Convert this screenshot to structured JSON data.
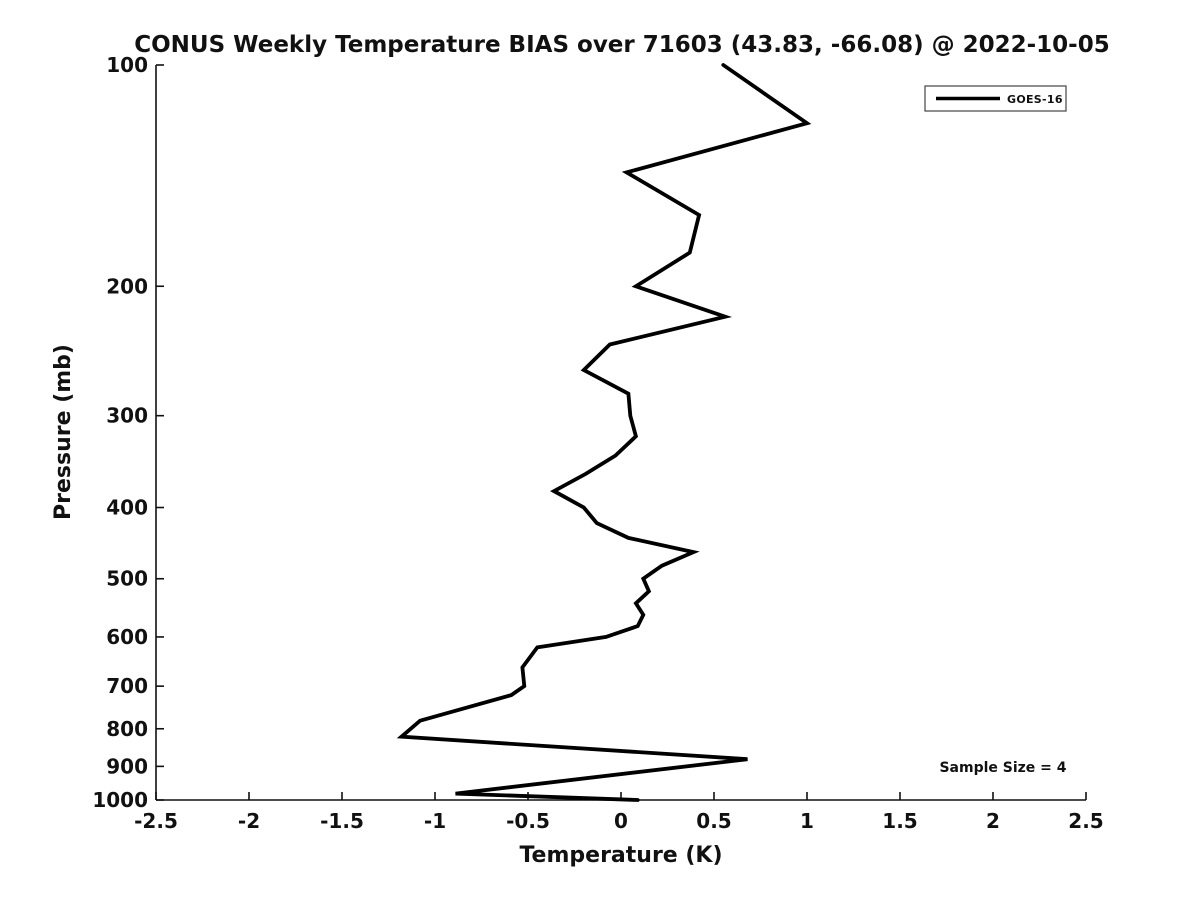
{
  "figure": {
    "background_color": "#ffffff",
    "axis_color": "#111111",
    "tick_label_color": "#111111"
  },
  "chart_data": {
    "type": "line",
    "title": "CONUS Weekly Temperature BIAS over 71603 (43.83, -66.08) @ 2022-10-05",
    "xlabel": "Temperature (K)",
    "ylabel": "Pressure (mb)",
    "xlim": [
      -2.5,
      2.5
    ],
    "ylim": [
      100,
      1000
    ],
    "yscale": "log",
    "y_axis_inverted": true,
    "grid": false,
    "x_ticks": [
      -2.5,
      -2,
      -1.5,
      -1,
      -0.5,
      0,
      0.5,
      1,
      1.5,
      2,
      2.5
    ],
    "x_tick_labels": [
      "-2.5",
      "-2",
      "-1.5",
      "-1",
      "-0.5",
      "0",
      "0.5",
      "1",
      "1.5",
      "2",
      "2.5"
    ],
    "y_ticks": [
      100,
      200,
      300,
      400,
      500,
      600,
      700,
      800,
      900,
      1000
    ],
    "y_tick_labels": [
      "100",
      "200",
      "300",
      "400",
      "500",
      "600",
      "700",
      "800",
      "900",
      "1000"
    ],
    "legend": {
      "position": "upper right",
      "entries": [
        {
          "label": "GOES-16",
          "color": "#000000",
          "line_width": 3.5
        }
      ]
    },
    "annotation": {
      "text": "Sample Size = 4"
    },
    "series": [
      {
        "name": "GOES-16",
        "color": "#000000",
        "line_width": 3.8,
        "points_pressure_mb_vs_bias_k": [
          [
            100,
            0.55
          ],
          [
            120,
            1.0
          ],
          [
            140,
            0.03
          ],
          [
            160,
            0.42
          ],
          [
            180,
            0.37
          ],
          [
            200,
            0.08
          ],
          [
            220,
            0.56
          ],
          [
            240,
            -0.06
          ],
          [
            260,
            -0.2
          ],
          [
            280,
            0.04
          ],
          [
            300,
            0.05
          ],
          [
            320,
            0.08
          ],
          [
            340,
            -0.03
          ],
          [
            360,
            -0.19
          ],
          [
            380,
            -0.36
          ],
          [
            400,
            -0.2
          ],
          [
            420,
            -0.13
          ],
          [
            440,
            0.04
          ],
          [
            460,
            0.39
          ],
          [
            480,
            0.22
          ],
          [
            500,
            0.12
          ],
          [
            520,
            0.15
          ],
          [
            540,
            0.08
          ],
          [
            560,
            0.12
          ],
          [
            580,
            0.09
          ],
          [
            600,
            -0.08
          ],
          [
            620,
            -0.45
          ],
          [
            660,
            -0.53
          ],
          [
            700,
            -0.52
          ],
          [
            720,
            -0.59
          ],
          [
            780,
            -1.08
          ],
          [
            820,
            -1.18
          ],
          [
            880,
            0.68
          ],
          [
            980,
            -0.89
          ],
          [
            1000,
            0.09
          ]
        ]
      }
    ]
  }
}
